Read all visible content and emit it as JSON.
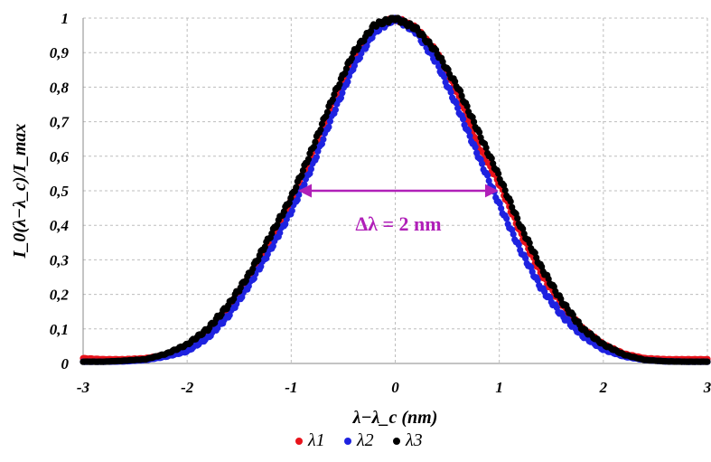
{
  "chart_data": {
    "type": "scatter",
    "title": "",
    "xlabel": "λ−λ_c (nm)",
    "ylabel": "I_0(λ−λ_c)/I_max",
    "xlim": [
      -3,
      3
    ],
    "ylim": [
      0,
      1
    ],
    "x_ticks": [
      "-3",
      "-2",
      "-1",
      "0",
      "1",
      "2",
      "3"
    ],
    "y_ticks": [
      "0",
      "0,1",
      "0,2",
      "0,3",
      "0,4",
      "0,5",
      "0,6",
      "0,7",
      "0,8",
      "0,9",
      "1"
    ],
    "grid": true,
    "legend_position": "bottom",
    "series": [
      {
        "name": "λ1",
        "color": "#e8131b",
        "points": [
          [
            -3.0,
            0.015
          ],
          [
            -2.8,
            0.012
          ],
          [
            -2.6,
            0.012
          ],
          [
            -2.4,
            0.015
          ],
          [
            -2.2,
            0.025
          ],
          [
            -2.0,
            0.045
          ],
          [
            -1.8,
            0.09
          ],
          [
            -1.6,
            0.16
          ],
          [
            -1.4,
            0.25
          ],
          [
            -1.2,
            0.35
          ],
          [
            -1.0,
            0.47
          ],
          [
            -0.8,
            0.6
          ],
          [
            -0.6,
            0.75
          ],
          [
            -0.4,
            0.88
          ],
          [
            -0.2,
            0.97
          ],
          [
            0.0,
            1.0
          ],
          [
            0.2,
            0.97
          ],
          [
            0.4,
            0.9
          ],
          [
            0.6,
            0.78
          ],
          [
            0.8,
            0.63
          ],
          [
            1.0,
            0.52
          ],
          [
            1.2,
            0.38
          ],
          [
            1.4,
            0.26
          ],
          [
            1.6,
            0.17
          ],
          [
            1.8,
            0.1
          ],
          [
            2.0,
            0.055
          ],
          [
            2.2,
            0.028
          ],
          [
            2.4,
            0.015
          ],
          [
            2.6,
            0.012
          ],
          [
            2.8,
            0.012
          ],
          [
            3.0,
            0.012
          ]
        ]
      },
      {
        "name": "λ2",
        "color": "#1e22e0",
        "points": [
          [
            -3.0,
            0.005
          ],
          [
            -2.8,
            0.005
          ],
          [
            -2.6,
            0.006
          ],
          [
            -2.4,
            0.01
          ],
          [
            -2.2,
            0.02
          ],
          [
            -2.0,
            0.035
          ],
          [
            -1.8,
            0.075
          ],
          [
            -1.6,
            0.14
          ],
          [
            -1.4,
            0.23
          ],
          [
            -1.2,
            0.33
          ],
          [
            -1.0,
            0.44
          ],
          [
            -0.8,
            0.57
          ],
          [
            -0.6,
            0.72
          ],
          [
            -0.4,
            0.86
          ],
          [
            -0.2,
            0.96
          ],
          [
            0.0,
            1.0
          ],
          [
            0.2,
            0.96
          ],
          [
            0.4,
            0.87
          ],
          [
            0.6,
            0.74
          ],
          [
            0.8,
            0.6
          ],
          [
            1.0,
            0.46
          ],
          [
            1.2,
            0.33
          ],
          [
            1.4,
            0.22
          ],
          [
            1.6,
            0.14
          ],
          [
            1.8,
            0.08
          ],
          [
            2.0,
            0.04
          ],
          [
            2.2,
            0.02
          ],
          [
            2.4,
            0.01
          ],
          [
            2.6,
            0.006
          ],
          [
            2.8,
            0.005
          ],
          [
            3.0,
            0.005
          ]
        ]
      },
      {
        "name": "λ3",
        "color": "#000000",
        "points": [
          [
            -3.0,
            0.005
          ],
          [
            -2.8,
            0.005
          ],
          [
            -2.6,
            0.008
          ],
          [
            -2.4,
            0.012
          ],
          [
            -2.2,
            0.028
          ],
          [
            -2.0,
            0.055
          ],
          [
            -1.8,
            0.1
          ],
          [
            -1.6,
            0.17
          ],
          [
            -1.4,
            0.26
          ],
          [
            -1.2,
            0.37
          ],
          [
            -1.0,
            0.48
          ],
          [
            -0.8,
            0.62
          ],
          [
            -0.6,
            0.77
          ],
          [
            -0.4,
            0.9
          ],
          [
            -0.2,
            0.98
          ],
          [
            0.0,
            1.0
          ],
          [
            0.2,
            0.97
          ],
          [
            0.4,
            0.9
          ],
          [
            0.6,
            0.8
          ],
          [
            0.8,
            0.67
          ],
          [
            1.0,
            0.54
          ],
          [
            1.2,
            0.4
          ],
          [
            1.4,
            0.28
          ],
          [
            1.6,
            0.18
          ],
          [
            1.8,
            0.1
          ],
          [
            2.0,
            0.055
          ],
          [
            2.2,
            0.025
          ],
          [
            2.4,
            0.01
          ],
          [
            2.6,
            0.006
          ],
          [
            2.8,
            0.005
          ],
          [
            3.0,
            0.005
          ]
        ]
      }
    ],
    "annotation": {
      "text": "Δλ = 2 nm",
      "color": "#b020b8",
      "arrow_from": [
        -0.92,
        0.5
      ],
      "arrow_to": [
        0.98,
        0.5
      ]
    }
  }
}
